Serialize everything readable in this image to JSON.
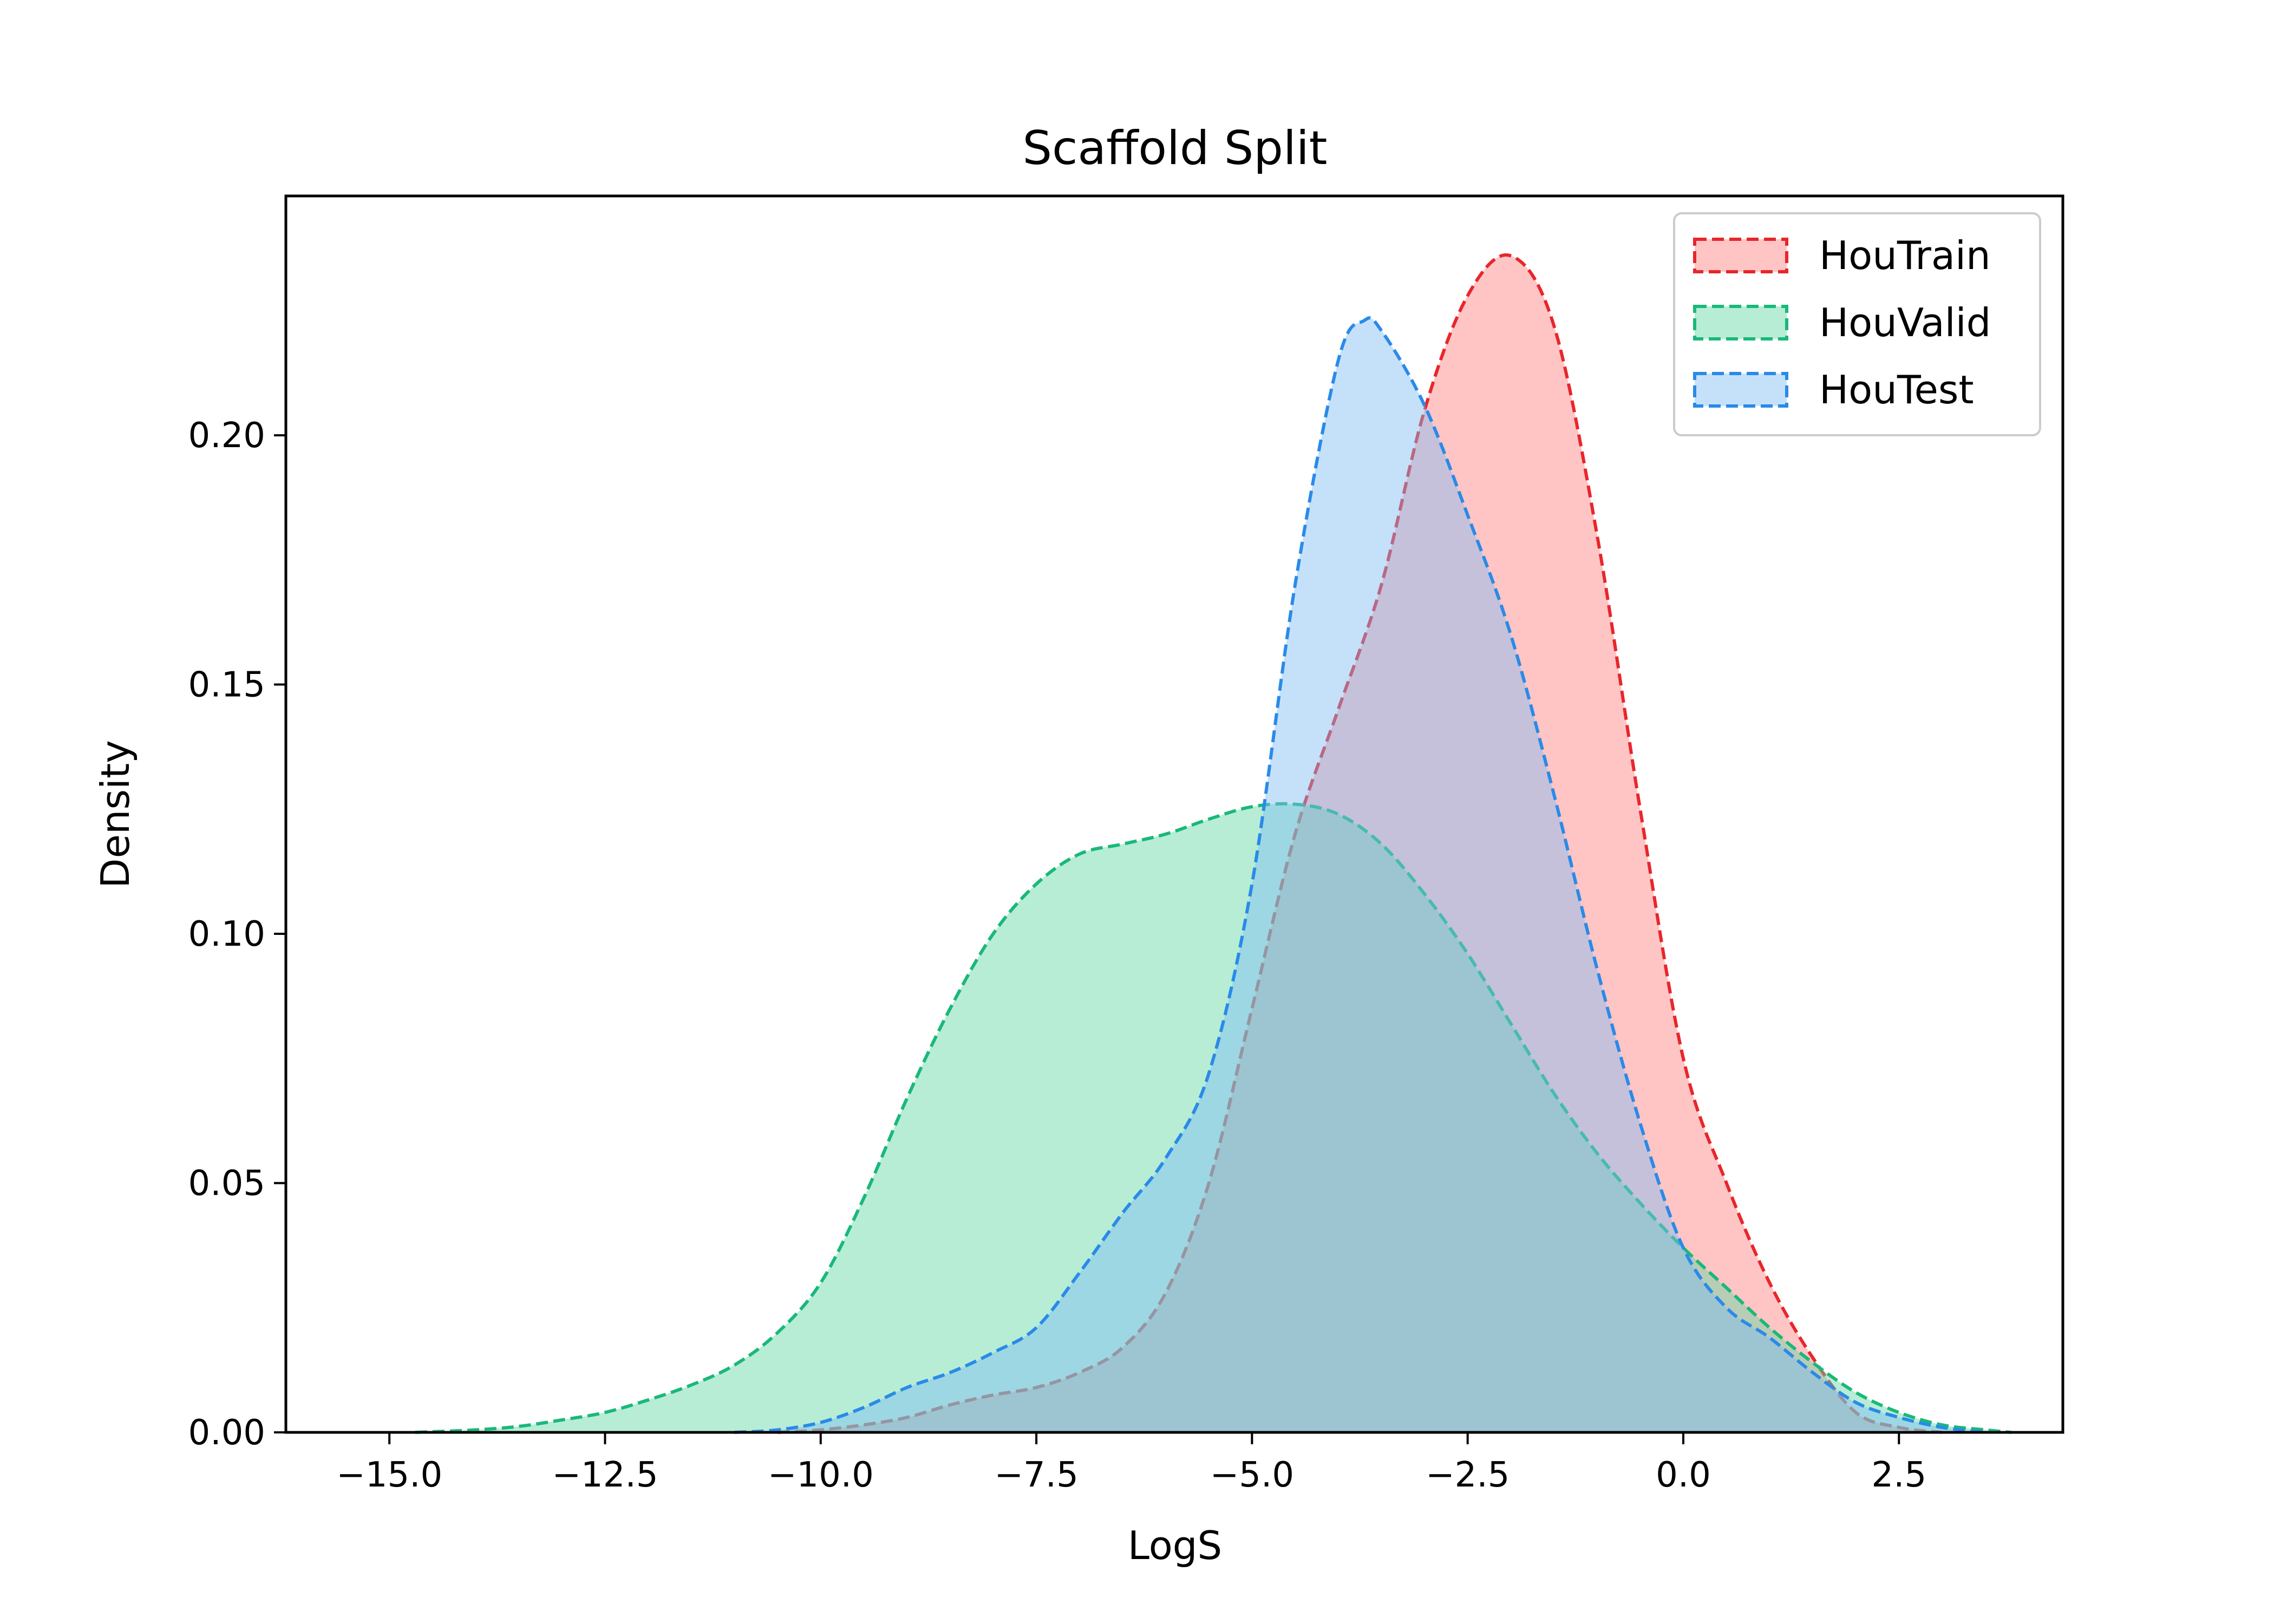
{
  "chart_data": {
    "type": "area",
    "title": "Scaffold Split",
    "xlabel": "LogS",
    "ylabel": "Density",
    "xlim": [
      -16.2,
      4.4
    ],
    "ylim": [
      0,
      0.248
    ],
    "xticks": [
      -15.0,
      -12.5,
      -10.0,
      -7.5,
      -5.0,
      -2.5,
      0.0,
      2.5
    ],
    "xtick_labels": [
      "−15.0",
      "−12.5",
      "−10.0",
      "−7.5",
      "−5.0",
      "−2.5",
      "0.0",
      "2.5"
    ],
    "yticks": [
      0.0,
      0.05,
      0.1,
      0.15,
      0.2
    ],
    "ytick_labels": [
      "0.00",
      "0.05",
      "0.10",
      "0.15",
      "0.20"
    ],
    "legend_position": "top-right",
    "grid": false,
    "series": [
      {
        "name": "HouTrain",
        "color": "#e8262b",
        "fill": "#ff7f7f",
        "x": [
          -10.5,
          -10.0,
          -9.5,
          -9.0,
          -8.5,
          -8.0,
          -7.5,
          -7.0,
          -6.5,
          -6.0,
          -5.5,
          -5.0,
          -4.5,
          -4.0,
          -3.5,
          -3.0,
          -2.5,
          -2.0,
          -1.5,
          -1.0,
          -0.5,
          0.0,
          0.5,
          1.0,
          1.5,
          2.0,
          2.5,
          3.0
        ],
        "y": [
          0.0,
          0.0005,
          0.0015,
          0.003,
          0.0055,
          0.0075,
          0.009,
          0.012,
          0.017,
          0.028,
          0.05,
          0.085,
          0.12,
          0.145,
          0.17,
          0.205,
          0.228,
          0.236,
          0.222,
          0.18,
          0.125,
          0.075,
          0.05,
          0.03,
          0.015,
          0.004,
          0.001,
          0.0
        ]
      },
      {
        "name": "HouValid",
        "color": "#1ab87a",
        "fill": "#5fd6a2",
        "x": [
          -14.7,
          -14.0,
          -13.5,
          -13.0,
          -12.5,
          -12.0,
          -11.5,
          -11.0,
          -10.5,
          -10.0,
          -9.5,
          -9.0,
          -8.5,
          -8.0,
          -7.5,
          -7.0,
          -6.5,
          -6.0,
          -5.5,
          -5.0,
          -4.5,
          -4.0,
          -3.5,
          -3.0,
          -2.5,
          -2.0,
          -1.5,
          -1.0,
          -0.5,
          0.0,
          0.5,
          1.0,
          1.5,
          2.0,
          2.5,
          3.0,
          3.5,
          3.8
        ],
        "y": [
          0.0,
          0.0005,
          0.0012,
          0.0025,
          0.004,
          0.0065,
          0.0095,
          0.0135,
          0.02,
          0.03,
          0.047,
          0.067,
          0.085,
          0.1,
          0.11,
          0.116,
          0.118,
          0.12,
          0.123,
          0.1255,
          0.126,
          0.124,
          0.118,
          0.108,
          0.096,
          0.082,
          0.068,
          0.056,
          0.046,
          0.037,
          0.029,
          0.021,
          0.014,
          0.008,
          0.004,
          0.0015,
          0.0005,
          0.0
        ]
      },
      {
        "name": "HouTest",
        "color": "#2a8ae8",
        "fill": "#7fbcf5",
        "x": [
          -11.0,
          -10.5,
          -10.0,
          -9.5,
          -9.0,
          -8.5,
          -8.0,
          -7.5,
          -7.0,
          -6.5,
          -6.0,
          -5.5,
          -5.0,
          -4.5,
          -4.0,
          -3.7,
          -3.5,
          -3.0,
          -2.5,
          -2.0,
          -1.5,
          -1.0,
          -0.5,
          0.0,
          0.5,
          1.0,
          1.5,
          2.0,
          2.5,
          3.0,
          3.5
        ],
        "y": [
          0.0,
          0.0005,
          0.002,
          0.005,
          0.009,
          0.012,
          0.016,
          0.021,
          0.032,
          0.044,
          0.055,
          0.072,
          0.11,
          0.17,
          0.215,
          0.223,
          0.221,
          0.206,
          0.184,
          0.16,
          0.128,
          0.093,
          0.062,
          0.037,
          0.025,
          0.019,
          0.012,
          0.006,
          0.003,
          0.001,
          0.0
        ]
      }
    ]
  }
}
